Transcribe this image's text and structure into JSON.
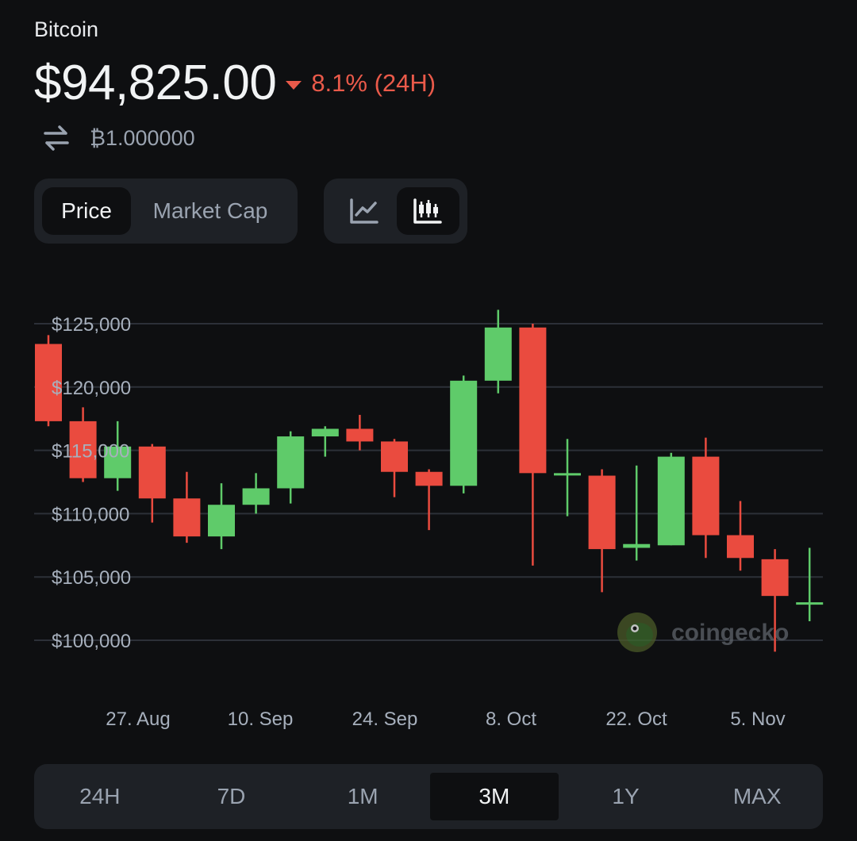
{
  "header": {
    "coin_name": "Bitcoin",
    "price": "$94,825.00",
    "change": "8.1% (24H)",
    "change_color": "#ea5a4a",
    "conversion": "₿1.000000"
  },
  "metric_toggle": {
    "options": [
      "Price",
      "Market Cap"
    ],
    "selected": "Price"
  },
  "chart_type_toggle": {
    "options": [
      "line-chart-icon",
      "candlestick-chart-icon"
    ],
    "selected": "candlestick-chart-icon"
  },
  "watermark": "coingecko",
  "time_ranges": {
    "options": [
      "24H",
      "7D",
      "1M",
      "3M",
      "1Y",
      "MAX"
    ],
    "selected": "3M"
  },
  "colors": {
    "up": "#5fcb6a",
    "down": "#ea4b3f",
    "background": "#0e0f11",
    "panel": "#1e2126"
  },
  "chart_data": {
    "type": "candlestick",
    "y_ticks": [
      {
        "value": 125000,
        "label": "$125,000"
      },
      {
        "value": 120000,
        "label": "$120,000"
      },
      {
        "value": 115000,
        "label": "$115,000"
      },
      {
        "value": 110000,
        "label": "$110,000"
      },
      {
        "value": 105000,
        "label": "$105,000"
      },
      {
        "value": 100000,
        "label": "$100,000"
      }
    ],
    "x_ticks": [
      "27. Aug",
      "10. Sep",
      "24. Sep",
      "8. Oct",
      "22. Oct",
      "5. Nov"
    ],
    "ylim": [
      98000,
      127000
    ],
    "grid": true,
    "candles": [
      {
        "open": 123400,
        "high": 124100,
        "low": 116900,
        "close": 117300
      },
      {
        "open": 117300,
        "high": 118400,
        "low": 112500,
        "close": 112800
      },
      {
        "open": 112800,
        "high": 117300,
        "low": 111800,
        "close": 115300
      },
      {
        "open": 115300,
        "high": 115500,
        "low": 109300,
        "close": 111200
      },
      {
        "open": 111200,
        "high": 113300,
        "low": 107700,
        "close": 108200
      },
      {
        "open": 108200,
        "high": 112400,
        "low": 107200,
        "close": 110700
      },
      {
        "open": 110700,
        "high": 113200,
        "low": 110000,
        "close": 112000
      },
      {
        "open": 112000,
        "high": 116500,
        "low": 110800,
        "close": 116100
      },
      {
        "open": 116100,
        "high": 116900,
        "low": 114500,
        "close": 116700
      },
      {
        "open": 116700,
        "high": 117800,
        "low": 115000,
        "close": 115700
      },
      {
        "open": 115700,
        "high": 115900,
        "low": 111300,
        "close": 113300
      },
      {
        "open": 113300,
        "high": 113500,
        "low": 108700,
        "close": 112200
      },
      {
        "open": 112200,
        "high": 120900,
        "low": 111600,
        "close": 120500
      },
      {
        "open": 120500,
        "high": 126100,
        "low": 119500,
        "close": 124700
      },
      {
        "open": 124700,
        "high": 125000,
        "low": 105900,
        "close": 113200
      },
      {
        "open": 113200,
        "high": 115900,
        "low": 109800,
        "close": 113200
      },
      {
        "open": 113000,
        "high": 113500,
        "low": 103800,
        "close": 107200
      },
      {
        "open": 107300,
        "high": 113800,
        "low": 106300,
        "close": 107600
      },
      {
        "open": 107500,
        "high": 114800,
        "low": 107500,
        "close": 114500
      },
      {
        "open": 114500,
        "high": 116000,
        "low": 106500,
        "close": 108300
      },
      {
        "open": 108300,
        "high": 111000,
        "low": 105500,
        "close": 106500
      },
      {
        "open": 106400,
        "high": 107200,
        "low": 99100,
        "close": 103500
      },
      {
        "open": 103000,
        "high": 107300,
        "low": 101500,
        "close": 103000
      }
    ]
  }
}
